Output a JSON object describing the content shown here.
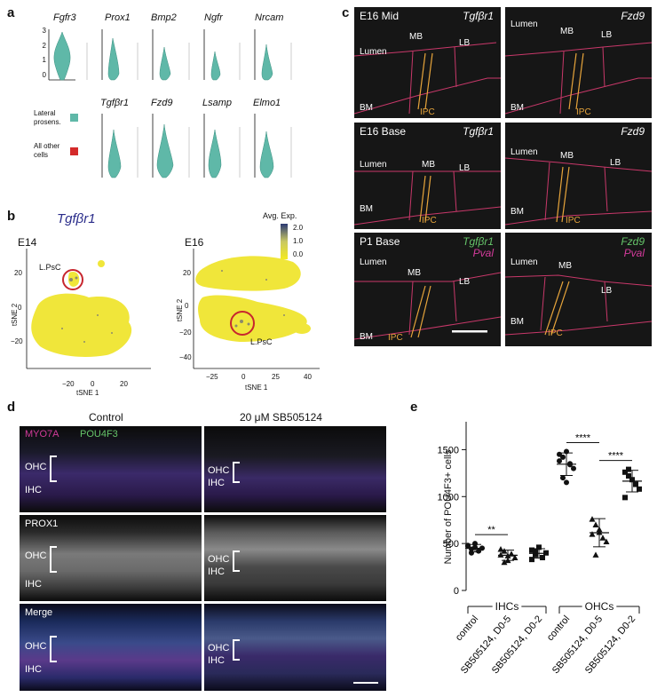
{
  "panel_letters": {
    "a": "a",
    "b": "b",
    "c": "c",
    "d": "d",
    "e": "e"
  },
  "panel_a": {
    "row1_genes": [
      "Fgfr3",
      "Prox1",
      "Bmp2",
      "Ngfr",
      "Nrcam"
    ],
    "row2_genes": [
      "Tgfβr1",
      "Fzd9",
      "Lsamp",
      "Elmo1"
    ],
    "y_ticks": [
      "3",
      "2",
      "1",
      "0"
    ],
    "legend": [
      {
        "label": "Lateral\nprosens.",
        "color": "#5fb8a8"
      },
      {
        "label": "All other\ncells",
        "color": "#d42a2a"
      }
    ]
  },
  "panel_b": {
    "gene": "Tgfβr1",
    "colorbar_title": "Avg. Exp.",
    "colorbar_ticks": [
      "2.0",
      "1.0",
      "0.0"
    ],
    "plots": [
      {
        "title": "E14",
        "xlabel": "tSNE 1",
        "ylabel": "tSNE 2",
        "x_ticks": [
          "−20",
          "0",
          "20"
        ],
        "y_ticks": [
          "20",
          "0",
          "−20"
        ],
        "cluster_label": "L.PsC"
      },
      {
        "title": "E16",
        "xlabel": "tSNE 1",
        "ylabel": "tSNE 2",
        "x_ticks": [
          "−25",
          "0",
          "25",
          "40"
        ],
        "y_ticks": [
          "20",
          "0",
          "−20",
          "−40"
        ],
        "cluster_label": "L.PsC"
      }
    ]
  },
  "panel_c": {
    "tiles": [
      {
        "title": "E16 Mid",
        "gene": "Tgfβr1",
        "gene2": "",
        "labels": {
          "lumen": "Lumen",
          "mb": "MB",
          "lb": "LB",
          "bm": "BM",
          "ipc": "IPC"
        }
      },
      {
        "title": "",
        "gene": "Fzd9",
        "gene2": "",
        "labels": {
          "lumen": "Lumen",
          "mb": "MB",
          "lb": "LB",
          "bm": "BM",
          "ipc": "IPC"
        }
      },
      {
        "title": "E16 Base",
        "gene": "Tgfβr1",
        "gene2": "",
        "labels": {
          "lumen": "Lumen",
          "mb": "MB",
          "lb": "LB",
          "bm": "BM",
          "ipc": "IPC"
        }
      },
      {
        "title": "",
        "gene": "Fzd9",
        "gene2": "",
        "labels": {
          "lumen": "Lumen",
          "mb": "MB",
          "lb": "LB",
          "bm": "BM",
          "ipc": "IPC"
        }
      },
      {
        "title": "P1 Base",
        "gene": "Tgfβr1",
        "gene2": "Pval",
        "labels": {
          "lumen": "Lumen",
          "mb": "MB",
          "lb": "LB",
          "bm": "BM",
          "ipc": "IPC"
        }
      },
      {
        "title": "",
        "gene": "Fzd9",
        "gene2": "Pval",
        "labels": {
          "lumen": "Lumen",
          "mb": "MB",
          "lb": "LB",
          "bm": "BM",
          "ipc": "IPC"
        }
      }
    ]
  },
  "panel_d": {
    "col_titles": [
      "Control",
      "20 μM SB505124"
    ],
    "marker1": "MYO7A",
    "marker2": "POU4F3",
    "row2_marker": "PROX1",
    "row3_label": "Merge",
    "ohc": "OHC",
    "ihc": "IHC"
  },
  "panel_e": {
    "ylabel": "Number of POU4F3+ cells",
    "group_labels": [
      "IHCs",
      "OHCs"
    ],
    "sig_labels": [
      "**",
      "****",
      "****"
    ],
    "chart_data": {
      "type": "scatter",
      "ylabel": "Number of POU4F3+ cells",
      "ylim": [
        0,
        1750
      ],
      "y_ticks": [
        0,
        500,
        1000,
        1500
      ],
      "categories": [
        "control",
        "SB505124, D0-5",
        "SB505124, D0-2",
        "control",
        "SB505124, D0-5",
        "SB505124, D0-2"
      ],
      "groups": [
        "IHCs",
        "IHCs",
        "IHCs",
        "OHCs",
        "OHCs",
        "OHCs"
      ],
      "means": [
        450,
        375,
        395,
        1345,
        615,
        1165
      ],
      "sd": [
        40,
        55,
        50,
        120,
        150,
        115
      ],
      "points": [
        [
          470,
          440,
          500,
          420,
          450,
          480,
          400,
          460
        ],
        [
          380,
          420,
          320,
          390,
          350,
          440,
          300,
          370
        ],
        [
          430,
          380,
          460,
          350,
          400,
          330,
          420
        ],
        [
          1450,
          1420,
          1480,
          1350,
          1300,
          1380,
          1200,
          1150,
          1340
        ],
        [
          760,
          700,
          620,
          560,
          520,
          600,
          380,
          650
        ],
        [
          1260,
          1220,
          1180,
          1130,
          1080,
          990,
          1290
        ]
      ],
      "markers": [
        "circle",
        "triangle",
        "square",
        "circle",
        "triangle",
        "square"
      ],
      "significance": [
        {
          "between": [
            0,
            1
          ],
          "label": "**"
        },
        {
          "between": [
            3,
            4
          ],
          "label": "****"
        },
        {
          "between": [
            4,
            5
          ],
          "label": "****"
        }
      ]
    }
  }
}
